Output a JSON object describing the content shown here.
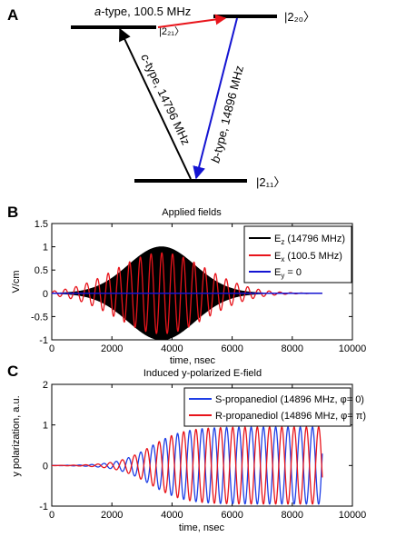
{
  "panel_a": {
    "label": "A",
    "levels": {
      "upper_left": "|2₂₁〉",
      "upper_right": "|2₂₀〉",
      "lower": "|2₁₁〉"
    },
    "transitions": {
      "a_type": {
        "italic": "a",
        "text": "-type, 100.5 MHz",
        "color": "#e8141b"
      },
      "c_type": {
        "italic": "c",
        "text": "-type, 14796 MHz",
        "color": "#000000"
      },
      "b_type": {
        "italic": "b",
        "text": "-type, 14896 MHz",
        "color": "#1414d2"
      }
    }
  },
  "panel_b": {
    "label": "B"
  },
  "panel_c": {
    "label": "C"
  },
  "chart_data": [
    {
      "type": "line",
      "title": "Applied fields",
      "xlabel": "time, nsec",
      "ylabel": "V/cm",
      "xlim": [
        0,
        10000
      ],
      "ylim": [
        -1,
        1.5
      ],
      "xticks": [
        "0",
        "2000",
        "4000",
        "6000",
        "8000",
        "10000"
      ],
      "yticks": [
        "-1",
        "-0.5",
        "0",
        "0.5",
        "1",
        "1.5"
      ],
      "grid": false,
      "legend_position": "top-right",
      "series": [
        {
          "name": "E_z (14796 MHz)",
          "color": "#000000",
          "description": "rapid oscillation, Gaussian envelope",
          "envelope_center": 3650,
          "envelope_sigma": 1100,
          "amplitude": 1.0,
          "x_range": [
            0,
            9000
          ],
          "legend": {
            "base": "E",
            "sub": "z",
            "rest": " (14796 MHz)"
          }
        },
        {
          "name": "E_x (100.5 MHz)",
          "color": "#e8141b",
          "envelope_center": 3650,
          "envelope_sigma": 1500,
          "amplitude": 0.87,
          "frequency_mhz": 2.8,
          "x_range": [
            0,
            9000
          ],
          "legend": {
            "base": "E",
            "sub": "x",
            "rest": " (100.5 MHz)"
          }
        },
        {
          "name": "E_y = 0",
          "color": "#1414d2",
          "value": 0,
          "x_range": [
            0,
            9000
          ],
          "legend": {
            "base": "E",
            "sub": "y",
            "rest": " = 0"
          }
        }
      ]
    },
    {
      "type": "line",
      "title": "Induced y-polarized E-field",
      "xlabel": "time, nsec",
      "ylabel": "y polarization, a.u.",
      "xlim": [
        0,
        10000
      ],
      "ylim": [
        -1,
        2
      ],
      "xticks": [
        "0",
        "2000",
        "4000",
        "6000",
        "8000",
        "10000"
      ],
      "yticks": [
        "-1",
        "0",
        "1",
        "2"
      ],
      "grid": false,
      "legend_position": "top-right",
      "series": [
        {
          "name": "S-propanediol (14896 MHz, φ= 0)",
          "color": "#1f3fe6",
          "phase": 0,
          "growth_center": 3300,
          "growth_width": 550,
          "amplitude": 0.95,
          "frequency_mhz": 2.45,
          "x_range": [
            0,
            9000
          ],
          "legend": {
            "text": "S-propanediol (14896 MHz, φ= 0)"
          }
        },
        {
          "name": "R-propanediol (14896 MHz, φ= π)",
          "color": "#e8141b",
          "phase": 3.14159,
          "growth_center": 3300,
          "growth_width": 550,
          "amplitude": 0.95,
          "frequency_mhz": 2.45,
          "x_range": [
            0,
            9000
          ],
          "legend": {
            "text": "R-propanediol (14896 MHz, φ= π)"
          }
        }
      ]
    }
  ]
}
